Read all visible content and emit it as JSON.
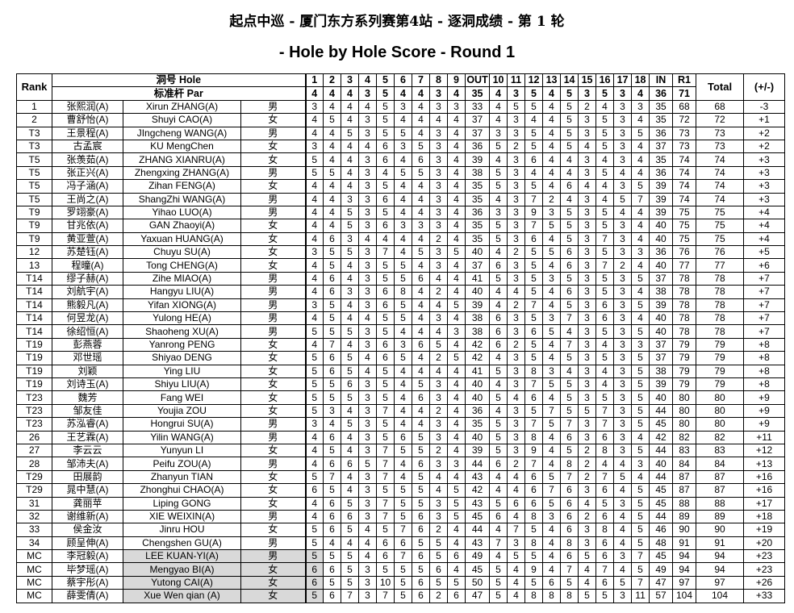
{
  "title": {
    "line1": "起点中巡 - 厦门东方系列赛第4站 - 逐洞成绩 - 第 1 轮",
    "line2": "- Hole by Hole Score - Round 1"
  },
  "header": {
    "rank": "Rank",
    "hole_label": "洞号 Hole",
    "par_label": "标准杆 Par",
    "total": "Total",
    "diff": "(+/-)",
    "holes": [
      "1",
      "2",
      "3",
      "4",
      "5",
      "6",
      "7",
      "8",
      "9",
      "OUT",
      "10",
      "11",
      "12",
      "13",
      "14",
      "15",
      "16",
      "17",
      "18",
      "IN",
      "R1"
    ],
    "par": [
      "4",
      "4",
      "4",
      "3",
      "5",
      "4",
      "4",
      "3",
      "4",
      "35",
      "4",
      "3",
      "5",
      "4",
      "5",
      "3",
      "5",
      "3",
      "4",
      "36",
      "71"
    ]
  },
  "columns": [
    "rank",
    "name_cn",
    "name_en",
    "gender",
    "h1",
    "h2",
    "h3",
    "h4",
    "h5",
    "h6",
    "h7",
    "h8",
    "h9",
    "out",
    "h10",
    "h11",
    "h12",
    "h13",
    "h14",
    "h15",
    "h16",
    "h17",
    "h18",
    "in",
    "r1",
    "total",
    "diff"
  ],
  "rows": [
    [
      "1",
      "张熙润(A)",
      "Xirun ZHANG(A)",
      "男",
      "3",
      "4",
      "4",
      "4",
      "5",
      "3",
      "4",
      "3",
      "3",
      "33",
      "4",
      "5",
      "5",
      "4",
      "5",
      "2",
      "4",
      "3",
      "3",
      "35",
      "68",
      "68",
      "-3"
    ],
    [
      "2",
      "曹舒怡(A)",
      "Shuyi CAO(A)",
      "女",
      "4",
      "5",
      "4",
      "3",
      "5",
      "4",
      "4",
      "4",
      "4",
      "37",
      "4",
      "3",
      "4",
      "4",
      "5",
      "3",
      "5",
      "3",
      "4",
      "35",
      "72",
      "72",
      "+1"
    ],
    [
      "T3",
      "王景程(A)",
      "JIngcheng WANG(A)",
      "男",
      "4",
      "4",
      "5",
      "3",
      "5",
      "5",
      "4",
      "3",
      "4",
      "37",
      "3",
      "3",
      "5",
      "4",
      "5",
      "3",
      "5",
      "3",
      "5",
      "36",
      "73",
      "73",
      "+2"
    ],
    [
      "T3",
      "古孟宸",
      "KU MengChen",
      "女",
      "3",
      "4",
      "4",
      "4",
      "6",
      "3",
      "5",
      "3",
      "4",
      "36",
      "5",
      "2",
      "5",
      "4",
      "5",
      "4",
      "5",
      "3",
      "4",
      "37",
      "73",
      "73",
      "+2"
    ],
    [
      "T5",
      "张羡茹(A)",
      "ZHANG XIANRU(A)",
      "女",
      "5",
      "4",
      "4",
      "3",
      "6",
      "4",
      "6",
      "3",
      "4",
      "39",
      "4",
      "3",
      "6",
      "4",
      "4",
      "3",
      "4",
      "3",
      "4",
      "35",
      "74",
      "74",
      "+3"
    ],
    [
      "T5",
      "张正兴(A)",
      "Zhengxing ZHANG(A)",
      "男",
      "5",
      "5",
      "4",
      "3",
      "4",
      "5",
      "5",
      "3",
      "4",
      "38",
      "5",
      "3",
      "4",
      "4",
      "4",
      "3",
      "5",
      "4",
      "4",
      "36",
      "74",
      "74",
      "+3"
    ],
    [
      "T5",
      "冯子涵(A)",
      "Zihan FENG(A)",
      "女",
      "4",
      "4",
      "4",
      "3",
      "5",
      "4",
      "4",
      "3",
      "4",
      "35",
      "5",
      "3",
      "5",
      "4",
      "6",
      "4",
      "4",
      "3",
      "5",
      "39",
      "74",
      "74",
      "+3"
    ],
    [
      "T5",
      "王尚之(A)",
      "ShangZhi WANG(A)",
      "男",
      "4",
      "4",
      "3",
      "3",
      "6",
      "4",
      "4",
      "3",
      "4",
      "35",
      "4",
      "3",
      "7",
      "2",
      "4",
      "3",
      "4",
      "5",
      "7",
      "39",
      "74",
      "74",
      "+3"
    ],
    [
      "T9",
      "罗翊豪(A)",
      "Yihao LUO(A)",
      "男",
      "4",
      "4",
      "5",
      "3",
      "5",
      "4",
      "4",
      "3",
      "4",
      "36",
      "3",
      "3",
      "9",
      "3",
      "5",
      "3",
      "5",
      "4",
      "4",
      "39",
      "75",
      "75",
      "+4"
    ],
    [
      "T9",
      "甘兆依(A)",
      "GAN Zhaoyi(A)",
      "女",
      "4",
      "4",
      "5",
      "3",
      "6",
      "3",
      "3",
      "3",
      "4",
      "35",
      "5",
      "3",
      "7",
      "5",
      "5",
      "3",
      "5",
      "3",
      "4",
      "40",
      "75",
      "75",
      "+4"
    ],
    [
      "T9",
      "黄亚萱(A)",
      "Yaxuan HUANG(A)",
      "女",
      "4",
      "6",
      "3",
      "4",
      "4",
      "4",
      "4",
      "2",
      "4",
      "35",
      "5",
      "3",
      "6",
      "4",
      "5",
      "3",
      "7",
      "3",
      "4",
      "40",
      "75",
      "75",
      "+4"
    ],
    [
      "12",
      "苏楚钰(A)",
      "Chuyu SU(A)",
      "女",
      "3",
      "5",
      "5",
      "3",
      "7",
      "4",
      "5",
      "3",
      "5",
      "40",
      "4",
      "2",
      "5",
      "5",
      "6",
      "3",
      "5",
      "3",
      "3",
      "36",
      "76",
      "76",
      "+5"
    ],
    [
      "13",
      "程曈(A)",
      "Tong CHENG(A)",
      "女",
      "4",
      "5",
      "4",
      "3",
      "5",
      "5",
      "4",
      "3",
      "4",
      "37",
      "6",
      "3",
      "5",
      "4",
      "6",
      "3",
      "7",
      "2",
      "4",
      "40",
      "77",
      "77",
      "+6"
    ],
    [
      "T14",
      "缪子赫(A)",
      "Zihe MIAO(A)",
      "男",
      "4",
      "6",
      "4",
      "3",
      "5",
      "5",
      "6",
      "4",
      "4",
      "41",
      "5",
      "3",
      "5",
      "3",
      "5",
      "3",
      "5",
      "3",
      "5",
      "37",
      "78",
      "78",
      "+7"
    ],
    [
      "T14",
      "刘航宇(A)",
      "Hangyu LIU(A)",
      "男",
      "4",
      "6",
      "3",
      "3",
      "6",
      "8",
      "4",
      "2",
      "4",
      "40",
      "4",
      "4",
      "5",
      "4",
      "6",
      "3",
      "5",
      "3",
      "4",
      "38",
      "78",
      "78",
      "+7"
    ],
    [
      "T14",
      "熊毅凡(A)",
      "Yifan XIONG(A)",
      "男",
      "3",
      "5",
      "4",
      "3",
      "6",
      "5",
      "4",
      "4",
      "5",
      "39",
      "4",
      "2",
      "7",
      "4",
      "5",
      "3",
      "6",
      "3",
      "5",
      "39",
      "78",
      "78",
      "+7"
    ],
    [
      "T14",
      "何昱龙(A)",
      "Yulong HE(A)",
      "男",
      "4",
      "5",
      "4",
      "4",
      "5",
      "5",
      "4",
      "3",
      "4",
      "38",
      "6",
      "3",
      "5",
      "3",
      "7",
      "3",
      "6",
      "3",
      "4",
      "40",
      "78",
      "78",
      "+7"
    ],
    [
      "T14",
      "徐绍恒(A)",
      "Shaoheng XU(A)",
      "男",
      "5",
      "5",
      "5",
      "3",
      "5",
      "4",
      "4",
      "4",
      "3",
      "38",
      "6",
      "3",
      "6",
      "5",
      "4",
      "3",
      "5",
      "3",
      "5",
      "40",
      "78",
      "78",
      "+7"
    ],
    [
      "T19",
      "彭燕蓉",
      "Yanrong PENG",
      "女",
      "4",
      "7",
      "4",
      "3",
      "6",
      "3",
      "6",
      "5",
      "4",
      "42",
      "6",
      "2",
      "5",
      "4",
      "7",
      "3",
      "4",
      "3",
      "3",
      "37",
      "79",
      "79",
      "+8"
    ],
    [
      "T19",
      "邓世瑶",
      "Shiyao DENG",
      "女",
      "5",
      "6",
      "5",
      "4",
      "6",
      "5",
      "4",
      "2",
      "5",
      "42",
      "4",
      "3",
      "5",
      "4",
      "5",
      "3",
      "5",
      "3",
      "5",
      "37",
      "79",
      "79",
      "+8"
    ],
    [
      "T19",
      "刘颖",
      "Ying LIU",
      "女",
      "5",
      "6",
      "5",
      "4",
      "5",
      "4",
      "4",
      "4",
      "4",
      "41",
      "5",
      "3",
      "8",
      "3",
      "4",
      "3",
      "4",
      "3",
      "5",
      "38",
      "79",
      "79",
      "+8"
    ],
    [
      "T19",
      "刘诗玉(A)",
      "Shiyu LIU(A)",
      "女",
      "5",
      "5",
      "6",
      "3",
      "5",
      "4",
      "5",
      "3",
      "4",
      "40",
      "4",
      "3",
      "7",
      "5",
      "5",
      "3",
      "4",
      "3",
      "5",
      "39",
      "79",
      "79",
      "+8"
    ],
    [
      "T23",
      "魏芳",
      "Fang WEI",
      "女",
      "5",
      "5",
      "5",
      "3",
      "5",
      "4",
      "6",
      "3",
      "4",
      "40",
      "5",
      "4",
      "6",
      "4",
      "5",
      "3",
      "5",
      "3",
      "5",
      "40",
      "80",
      "80",
      "+9"
    ],
    [
      "T23",
      "邹友佳",
      "Youjia ZOU",
      "女",
      "5",
      "3",
      "4",
      "3",
      "7",
      "4",
      "4",
      "2",
      "4",
      "36",
      "4",
      "3",
      "5",
      "7",
      "5",
      "5",
      "7",
      "3",
      "5",
      "44",
      "80",
      "80",
      "+9"
    ],
    [
      "T23",
      "苏泓睿(A)",
      "Hongrui SU(A)",
      "男",
      "3",
      "4",
      "5",
      "3",
      "5",
      "4",
      "4",
      "3",
      "4",
      "35",
      "5",
      "3",
      "7",
      "5",
      "7",
      "3",
      "7",
      "3",
      "5",
      "45",
      "80",
      "80",
      "+9"
    ],
    [
      "26",
      "王艺霖(A)",
      "Yilin WANG(A)",
      "男",
      "4",
      "6",
      "4",
      "3",
      "5",
      "6",
      "5",
      "3",
      "4",
      "40",
      "5",
      "3",
      "8",
      "4",
      "6",
      "3",
      "6",
      "3",
      "4",
      "42",
      "82",
      "82",
      "+11"
    ],
    [
      "27",
      "李云云",
      "Yunyun LI",
      "女",
      "4",
      "5",
      "4",
      "3",
      "7",
      "5",
      "5",
      "2",
      "4",
      "39",
      "5",
      "3",
      "9",
      "4",
      "5",
      "2",
      "8",
      "3",
      "5",
      "44",
      "83",
      "83",
      "+12"
    ],
    [
      "28",
      "邹沛夫(A)",
      "Peifu ZOU(A)",
      "男",
      "4",
      "6",
      "6",
      "5",
      "7",
      "4",
      "6",
      "3",
      "3",
      "44",
      "6",
      "2",
      "7",
      "4",
      "8",
      "2",
      "4",
      "4",
      "3",
      "40",
      "84",
      "84",
      "+13"
    ],
    [
      "T29",
      "田展韵",
      "Zhanyun TIAN",
      "女",
      "5",
      "7",
      "4",
      "3",
      "7",
      "4",
      "5",
      "4",
      "4",
      "43",
      "4",
      "4",
      "6",
      "5",
      "7",
      "2",
      "7",
      "5",
      "4",
      "44",
      "87",
      "87",
      "+16"
    ],
    [
      "T29",
      "晁中慧(A)",
      "Zhonghui CHAO(A)",
      "女",
      "6",
      "5",
      "4",
      "3",
      "5",
      "5",
      "5",
      "4",
      "5",
      "42",
      "4",
      "4",
      "6",
      "7",
      "6",
      "3",
      "6",
      "4",
      "5",
      "45",
      "87",
      "87",
      "+16"
    ],
    [
      "31",
      "龚丽苹",
      "Liping GONG",
      "女",
      "4",
      "6",
      "5",
      "3",
      "7",
      "5",
      "5",
      "3",
      "5",
      "43",
      "5",
      "6",
      "6",
      "5",
      "6",
      "4",
      "5",
      "3",
      "5",
      "45",
      "88",
      "88",
      "+17"
    ],
    [
      "32",
      "谢维新(A)",
      "XIE WEIXIN(A)",
      "男",
      "4",
      "6",
      "6",
      "3",
      "7",
      "5",
      "6",
      "3",
      "5",
      "45",
      "6",
      "4",
      "8",
      "3",
      "6",
      "2",
      "6",
      "4",
      "5",
      "44",
      "89",
      "89",
      "+18"
    ],
    [
      "33",
      "侯金汝",
      "Jinru HOU",
      "女",
      "5",
      "6",
      "5",
      "4",
      "5",
      "7",
      "6",
      "2",
      "4",
      "44",
      "4",
      "7",
      "5",
      "4",
      "6",
      "3",
      "8",
      "4",
      "5",
      "46",
      "90",
      "90",
      "+19"
    ],
    [
      "34",
      "顾呈伸(A)",
      "Chengshen GU(A)",
      "男",
      "5",
      "4",
      "4",
      "4",
      "6",
      "6",
      "5",
      "5",
      "4",
      "43",
      "7",
      "3",
      "8",
      "4",
      "8",
      "3",
      "6",
      "4",
      "5",
      "48",
      "91",
      "91",
      "+20"
    ],
    [
      "MC",
      "李冠毅(A)",
      "LEE KUAN-YI(A)",
      "男",
      "5",
      "5",
      "5",
      "4",
      "6",
      "7",
      "6",
      "5",
      "6",
      "49",
      "4",
      "5",
      "5",
      "4",
      "6",
      "5",
      "6",
      "3",
      "7",
      "45",
      "94",
      "94",
      "+23"
    ],
    [
      "MC",
      "毕梦瑶(A)",
      "Mengyao BI(A)",
      "女",
      "6",
      "6",
      "5",
      "3",
      "5",
      "5",
      "5",
      "6",
      "4",
      "45",
      "5",
      "4",
      "9",
      "4",
      "7",
      "4",
      "7",
      "4",
      "5",
      "49",
      "94",
      "94",
      "+23"
    ],
    [
      "MC",
      "蔡宇彤(A)",
      "Yutong CAI(A)",
      "女",
      "6",
      "5",
      "5",
      "3",
      "10",
      "5",
      "6",
      "5",
      "5",
      "50",
      "5",
      "4",
      "5",
      "6",
      "5",
      "4",
      "6",
      "5",
      "7",
      "47",
      "97",
      "97",
      "+26"
    ],
    [
      "MC",
      "薛雯倩(A)",
      "Xue  Wen qian (A)",
      "女",
      "5",
      "6",
      "7",
      "3",
      "7",
      "5",
      "6",
      "2",
      "6",
      "47",
      "5",
      "4",
      "8",
      "8",
      "8",
      "5",
      "5",
      "3",
      "11",
      "57",
      "104",
      "104",
      "+33"
    ]
  ],
  "colors": {
    "missed_cut_shade": "#d9d9d9",
    "border": "#000000"
  }
}
